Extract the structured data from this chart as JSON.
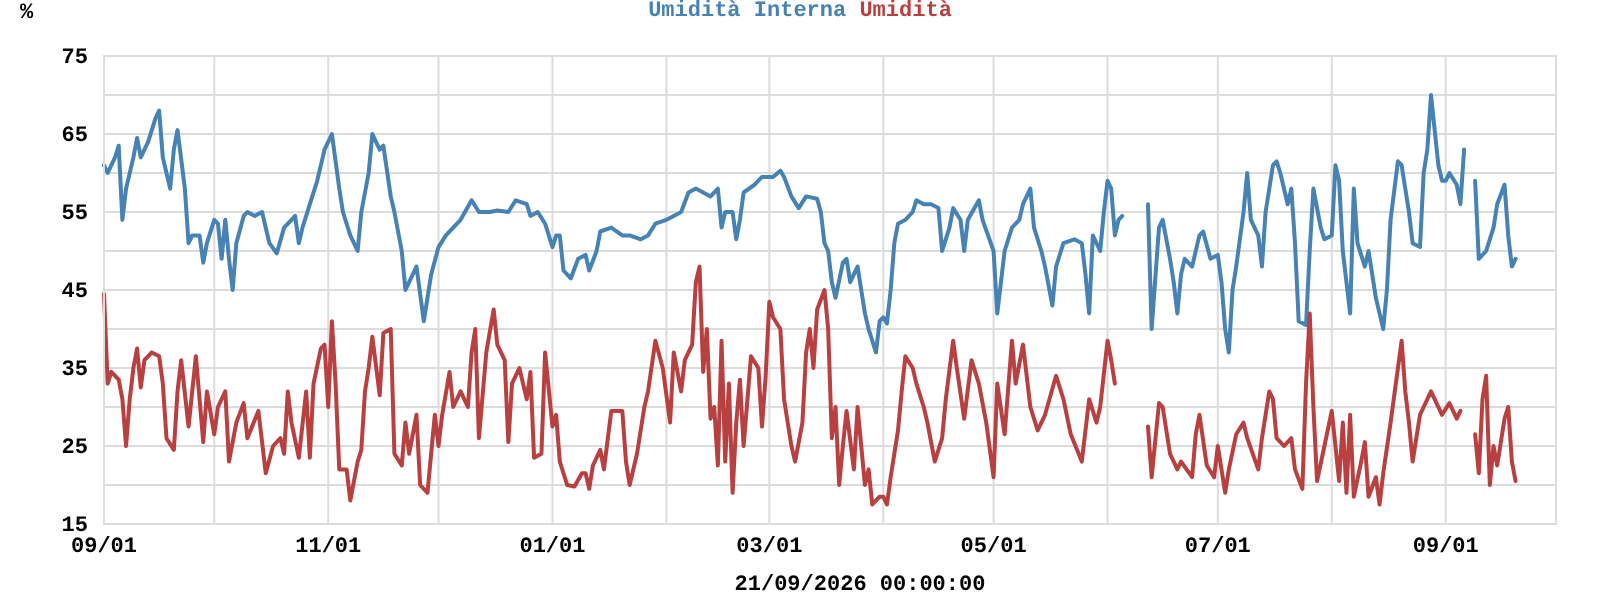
{
  "chart_data": {
    "type": "line",
    "xlabel": "21/09/2026 00:00:00",
    "ylabel": "%",
    "legend": "top",
    "grid": true,
    "line_style": "solid",
    "marker": "none",
    "xlim": [
      "2025-09-01",
      "2026-10-01"
    ],
    "xticks": [
      {
        "value": "2025-09-01",
        "label": "09/01"
      },
      {
        "value": "2025-10-01",
        "label": null
      },
      {
        "value": "2025-11-01",
        "label": "11/01"
      },
      {
        "value": "2025-12-01",
        "label": null
      },
      {
        "value": "2026-01-01",
        "label": "01/01"
      },
      {
        "value": "2026-02-01",
        "label": null
      },
      {
        "value": "2026-03-01",
        "label": "03/01"
      },
      {
        "value": "2026-04-01",
        "label": null
      },
      {
        "value": "2026-05-01",
        "label": "05/01"
      },
      {
        "value": "2026-06-01",
        "label": null
      },
      {
        "value": "2026-07-01",
        "label": "07/01"
      },
      {
        "value": "2026-08-01",
        "label": null
      },
      {
        "value": "2026-09-01",
        "label": "09/01"
      }
    ],
    "ylim": [
      15,
      75
    ],
    "yticks": [
      15,
      {
        "value": 20,
        "label": null
      },
      25,
      {
        "value": 30,
        "label": null
      },
      35,
      {
        "value": 40,
        "label": null
      },
      45,
      {
        "value": 50,
        "label": null
      },
      55,
      {
        "value": 60,
        "label": null
      },
      65,
      {
        "value": 70,
        "label": null
      },
      75
    ],
    "series": [
      {
        "name": "Umidità Interna",
        "color": "#4682b4",
        "x": [
          "2025-09-01",
          "2025-09-02",
          "2025-09-04",
          "2025-09-05",
          "2025-09-06",
          "2025-09-07",
          "2025-09-09",
          "2025-09-10",
          "2025-09-11",
          "2025-09-13",
          "2025-09-15",
          "2025-09-16",
          "2025-09-17",
          "2025-09-19",
          "2025-09-20",
          "2025-09-21",
          "2025-09-23",
          "2025-09-24",
          "2025-09-25",
          "2025-09-27",
          "2025-09-28",
          "2025-09-29",
          "2025-10-01",
          "2025-10-02",
          "2025-10-03",
          "2025-10-04",
          "2025-10-05",
          "2025-10-06",
          "2025-10-07",
          "2025-10-09",
          "2025-10-10",
          "2025-10-12",
          "2025-10-14",
          "2025-10-16",
          "2025-10-18",
          "2025-10-20",
          "2025-10-22",
          "2025-10-23",
          "2025-10-24",
          "2025-10-25",
          "2025-10-27",
          "2025-10-29",
          "2025-10-31",
          "2025-11-02",
          "2025-11-04",
          "2025-11-05",
          "2025-11-07",
          "2025-11-09",
          "2025-11-10",
          "2025-11-12",
          "2025-11-13",
          "2025-11-15",
          "2025-11-16",
          "2025-11-18",
          "2025-11-19",
          "2025-11-21",
          "2025-11-22",
          "2025-11-24",
          "2025-11-25",
          "2025-11-27",
          "2025-11-29",
          "2025-12-01",
          "2025-12-03",
          "2025-12-05",
          "2025-12-07",
          "2025-12-10",
          "2025-12-12",
          "2025-12-15",
          "2025-12-17",
          "2025-12-20",
          "2025-12-22",
          "2025-12-25",
          "2025-12-26",
          "2025-12-28",
          "2025-12-30",
          "2026-01-01",
          "2026-01-02",
          "2026-01-03",
          "2026-01-04",
          "2026-01-06",
          "2026-01-08",
          "2026-01-10",
          "2026-01-11",
          "2026-01-13",
          "2026-01-14",
          "2026-01-17",
          "2026-01-20",
          "2026-01-22",
          "2026-01-25",
          "2026-01-27",
          "2026-01-29",
          "2026-02-01",
          "2026-02-03",
          "2026-02-05",
          "2026-02-07",
          "2026-02-09",
          "2026-02-11",
          "2026-02-13",
          "2026-02-15",
          "2026-02-16",
          "2026-02-17",
          "2026-02-19",
          "2026-02-20",
          "2026-02-21",
          "2026-02-22",
          "2026-02-25",
          "2026-02-27",
          "2026-03-02",
          "2026-03-04",
          "2026-03-05",
          "2026-03-07",
          "2026-03-09",
          "2026-03-11",
          "2026-03-14",
          "2026-03-15",
          "2026-03-16",
          "2026-03-17",
          "2026-03-18",
          "2026-03-19",
          "2026-03-21",
          "2026-03-22",
          "2026-03-23",
          "2026-03-25",
          "2026-03-26",
          "2026-03-27",
          "2026-03-28",
          "2026-03-30",
          "2026-03-31",
          "2026-04-01",
          "2026-04-02",
          "2026-04-03",
          "2026-04-04",
          "2026-04-05",
          "2026-04-07",
          "2026-04-09",
          "2026-04-10",
          "2026-04-12",
          "2026-04-14",
          "2026-04-16",
          "2026-04-17",
          "2026-04-19",
          "2026-04-20",
          "2026-04-22",
          "2026-04-23",
          "2026-04-24",
          "2026-04-27",
          "2026-04-28",
          "2026-05-01",
          "2026-05-02",
          "2026-05-03",
          "2026-05-04",
          "2026-05-06",
          "2026-05-08",
          "2026-05-09",
          "2026-05-11",
          "2026-05-12",
          "2026-05-14",
          "2026-05-15",
          "2026-05-17",
          "2026-05-18",
          "2026-05-20",
          "2026-05-23",
          "2026-05-25",
          "2026-05-26",
          "2026-05-27",
          "2026-05-28",
          "2026-05-30",
          "2026-05-31",
          "2026-06-01",
          "2026-06-02",
          "2026-06-03",
          "2026-06-04",
          "2026-06-05",
          "2026-06-08",
          "2026-06-12",
          "2026-06-13",
          "2026-06-15",
          "2026-06-16",
          "2026-06-18",
          "2026-06-19",
          "2026-06-20",
          "2026-06-21",
          "2026-06-22",
          "2026-06-24",
          "2026-06-26",
          "2026-06-27",
          "2026-06-29",
          "2026-07-01",
          "2026-07-02",
          "2026-07-03",
          "2026-07-04",
          "2026-07-05",
          "2026-07-06",
          "2026-07-08",
          "2026-07-09",
          "2026-07-10",
          "2026-07-12",
          "2026-07-13",
          "2026-07-14",
          "2026-07-16",
          "2026-07-17",
          "2026-07-18",
          "2026-07-20",
          "2026-07-21",
          "2026-07-22",
          "2026-07-23",
          "2026-07-25",
          "2026-07-26",
          "2026-07-27",
          "2026-07-29",
          "2026-07-30",
          "2026-08-01",
          "2026-08-02",
          "2026-08-03",
          "2026-08-04",
          "2026-08-06",
          "2026-08-07",
          "2026-08-08",
          "2026-08-10",
          "2026-08-11",
          "2026-08-13",
          "2026-08-14",
          "2026-08-15",
          "2026-08-16",
          "2026-08-17",
          "2026-08-19",
          "2026-08-20",
          "2026-08-22",
          "2026-08-23",
          "2026-08-25",
          "2026-08-26",
          "2026-08-27",
          "2026-08-28",
          "2026-08-30",
          "2026-08-31",
          "2026-09-01",
          "2026-09-02",
          "2026-09-04",
          "2026-09-05",
          "2026-09-06",
          "2026-09-08",
          "2026-09-09",
          "2026-09-10",
          "2026-09-12",
          "2026-09-14",
          "2026-09-15",
          "2026-09-17",
          "2026-09-18",
          "2026-09-19",
          "2026-09-20"
        ],
        "values": [
          61,
          60,
          62,
          63.5,
          54,
          58,
          62,
          64.5,
          62,
          64,
          67,
          68,
          62,
          58,
          63,
          65.5,
          58,
          51,
          52,
          52,
          48.5,
          51,
          54,
          53.5,
          49,
          54,
          49,
          45,
          51,
          54.5,
          55,
          54.5,
          55,
          51,
          49.7,
          53,
          54,
          54.5,
          51,
          53,
          56,
          59,
          63,
          65,
          58,
          55,
          52,
          50,
          55,
          60,
          65,
          63,
          63.5,
          57,
          55,
          50,
          45,
          47,
          48,
          41,
          47,
          50.5,
          52,
          53,
          54,
          56.5,
          55,
          55,
          55.2,
          55,
          56.5,
          56,
          54.5,
          55,
          53.5,
          50.5,
          52,
          52,
          47.5,
          46.5,
          49,
          49.5,
          47.5,
          50,
          52.5,
          53,
          52,
          52,
          51.5,
          52,
          53.5,
          54,
          54.5,
          55,
          57.5,
          58,
          57.5,
          57,
          58,
          53,
          55,
          55,
          51.5,
          54,
          57.5,
          58.5,
          59.5,
          59.5,
          60.3,
          59.5,
          57,
          55.5,
          57,
          56.7,
          55,
          51,
          50,
          46,
          44,
          48.5,
          49,
          46,
          48,
          45,
          42,
          40,
          37,
          41,
          41.5,
          40.7,
          45,
          51,
          53.5,
          54,
          55,
          56.5,
          56,
          56,
          55.5,
          50,
          53,
          55.5,
          54,
          50,
          54,
          56.5,
          54,
          50,
          42,
          46,
          50,
          53,
          54,
          56,
          58,
          53,
          50,
          48,
          43,
          48,
          51,
          51.5,
          51,
          47,
          42,
          52,
          50,
          55,
          59,
          58,
          52,
          54,
          54.5,
          null,
          56,
          40,
          53,
          54,
          49,
          46,
          42,
          47,
          49,
          48,
          52,
          52.5,
          49,
          49.5,
          46,
          40,
          37,
          45,
          48,
          55,
          60,
          54,
          52,
          48,
          55,
          61,
          61.5,
          60,
          56,
          58,
          51,
          41,
          40.5,
          50,
          58,
          53,
          51.5,
          52,
          61,
          59,
          50,
          42,
          58,
          51,
          48,
          50,
          44,
          42,
          40,
          45,
          54,
          61.5,
          61,
          55,
          51,
          50.5,
          60,
          63,
          70,
          61,
          59,
          59,
          60,
          58.5,
          56,
          63,
          null,
          59,
          49,
          50,
          53,
          56,
          58.5,
          52,
          48,
          49
        ]
      },
      {
        "name": "Umidità",
        "color": "#b94040",
        "x": [
          "2025-09-01",
          "2025-09-02",
          "2025-09-03",
          "2025-09-05",
          "2025-09-06",
          "2025-09-07",
          "2025-09-08",
          "2025-09-09",
          "2025-09-10",
          "2025-09-11",
          "2025-09-12",
          "2025-09-14",
          "2025-09-16",
          "2025-09-17",
          "2025-09-18",
          "2025-09-20",
          "2025-09-21",
          "2025-09-22",
          "2025-09-24",
          "2025-09-26",
          "2025-09-28",
          "2025-09-29",
          "2025-10-01",
          "2025-10-02",
          "2025-10-04",
          "2025-10-05",
          "2025-10-07",
          "2025-10-09",
          "2025-10-10",
          "2025-10-13",
          "2025-10-15",
          "2025-10-17",
          "2025-10-19",
          "2025-10-20",
          "2025-10-21",
          "2025-10-22",
          "2025-10-24",
          "2025-10-26",
          "2025-10-27",
          "2025-10-28",
          "2025-10-30",
          "2025-10-31",
          "2025-11-01",
          "2025-11-02",
          "2025-11-03",
          "2025-11-04",
          "2025-11-06",
          "2025-11-07",
          "2025-11-09",
          "2025-11-10",
          "2025-11-11",
          "2025-11-12",
          "2025-11-13",
          "2025-11-15",
          "2025-11-16",
          "2025-11-18",
          "2025-11-19",
          "2025-11-21",
          "2025-11-22",
          "2025-11-23",
          "2025-11-25",
          "2025-11-26",
          "2025-11-28",
          "2025-11-30",
          "2025-12-01",
          "2025-12-02",
          "2025-12-04",
          "2025-12-05",
          "2025-12-07",
          "2025-12-09",
          "2025-12-10",
          "2025-12-11",
          "2025-12-12",
          "2025-12-14",
          "2025-12-16",
          "2025-12-17",
          "2025-12-19",
          "2025-12-20",
          "2025-12-21",
          "2025-12-23",
          "2025-12-25",
          "2025-12-26",
          "2025-12-27",
          "2025-12-29",
          "2025-12-30",
          "2026-01-01",
          "2026-01-02",
          "2026-01-03",
          "2026-01-05",
          "2026-01-07",
          "2026-01-09",
          "2026-01-10",
          "2026-01-11",
          "2026-01-12",
          "2026-01-14",
          "2026-01-15",
          "2026-01-17",
          "2026-01-18",
          "2026-01-20",
          "2026-01-21",
          "2026-01-22",
          "2026-01-24",
          "2026-01-26",
          "2026-01-27",
          "2026-01-29",
          "2026-01-31",
          "2026-02-02",
          "2026-02-03",
          "2026-02-05",
          "2026-02-06",
          "2026-02-08",
          "2026-02-09",
          "2026-02-10",
          "2026-02-11",
          "2026-02-12",
          "2026-02-13",
          "2026-02-14",
          "2026-02-15",
          "2026-02-16",
          "2026-02-17",
          "2026-02-18",
          "2026-02-19",
          "2026-02-20",
          "2026-02-21",
          "2026-02-22",
          "2026-02-24",
          "2026-02-26",
          "2026-02-27",
          "2026-02-28",
          "2026-03-01",
          "2026-03-02",
          "2026-03-04",
          "2026-03-05",
          "2026-03-07",
          "2026-03-08",
          "2026-03-10",
          "2026-03-11",
          "2026-03-12",
          "2026-03-13",
          "2026-03-14",
          "2026-03-16",
          "2026-03-17",
          "2026-03-18",
          "2026-03-19",
          "2026-03-20",
          "2026-03-21",
          "2026-03-22",
          "2026-03-24",
          "2026-03-25",
          "2026-03-27",
          "2026-03-28",
          "2026-03-29",
          "2026-03-31",
          "2026-04-01",
          "2026-04-02",
          "2026-04-03",
          "2026-04-05",
          "2026-04-06",
          "2026-04-07",
          "2026-04-09",
          "2026-04-10",
          "2026-04-12",
          "2026-04-13",
          "2026-04-15",
          "2026-04-17",
          "2026-04-18",
          "2026-04-20",
          "2026-04-21",
          "2026-04-23",
          "2026-04-25",
          "2026-04-27",
          "2026-04-29",
          "2026-05-01",
          "2026-05-02",
          "2026-05-04",
          "2026-05-06",
          "2026-05-07",
          "2026-05-09",
          "2026-05-11",
          "2026-05-13",
          "2026-05-15",
          "2026-05-18",
          "2026-05-20",
          "2026-05-22",
          "2026-05-25",
          "2026-05-27",
          "2026-05-29",
          "2026-05-30",
          "2026-06-01",
          "2026-06-02",
          "2026-06-03",
          "2026-06-06",
          "2026-06-12",
          "2026-06-13",
          "2026-06-15",
          "2026-06-16",
          "2026-06-18",
          "2026-06-20",
          "2026-06-21",
          "2026-06-24",
          "2026-06-25",
          "2026-06-26",
          "2026-06-28",
          "2026-06-30",
          "2026-07-01",
          "2026-07-03",
          "2026-07-04",
          "2026-07-06",
          "2026-07-08",
          "2026-07-09",
          "2026-07-12",
          "2026-07-13",
          "2026-07-15",
          "2026-07-16",
          "2026-07-17",
          "2026-07-19",
          "2026-07-21",
          "2026-07-22",
          "2026-07-24",
          "2026-07-25",
          "2026-07-26",
          "2026-07-27",
          "2026-07-28",
          "2026-07-30",
          "2026-08-01",
          "2026-08-03",
          "2026-08-04",
          "2026-08-05",
          "2026-08-06",
          "2026-08-07",
          "2026-08-09",
          "2026-08-10",
          "2026-08-11",
          "2026-08-13",
          "2026-08-14",
          "2026-08-15",
          "2026-08-17",
          "2026-08-19",
          "2026-08-20",
          "2026-08-21",
          "2026-08-22",
          "2026-08-23",
          "2026-08-25",
          "2026-08-26",
          "2026-08-28",
          "2026-08-31",
          "2026-09-02",
          "2026-09-04",
          "2026-09-05",
          "2026-09-07",
          "2026-09-09",
          "2026-09-10",
          "2026-09-11",
          "2026-09-12",
          "2026-09-13",
          "2026-09-14",
          "2026-09-15",
          "2026-09-17",
          "2026-09-18",
          "2026-09-19",
          "2026-09-20"
        ],
        "values": [
          44.5,
          33,
          34.5,
          33.5,
          31,
          25,
          31,
          35,
          37.5,
          32.5,
          36,
          37,
          36.5,
          33,
          26,
          24.5,
          32,
          36,
          27.5,
          36.5,
          25.5,
          32,
          26.5,
          30,
          32,
          23,
          28,
          30.5,
          26,
          29.5,
          21.5,
          25,
          26,
          24,
          32,
          28,
          23.5,
          32,
          23.5,
          33,
          37.5,
          38,
          30,
          41,
          33,
          22,
          22,
          18,
          23,
          24.5,
          32,
          35,
          39,
          31.5,
          39.5,
          40,
          24,
          22.5,
          28,
          24,
          29,
          20,
          19,
          29,
          25,
          29,
          34.5,
          30,
          32,
          30,
          37,
          40,
          26,
          37,
          42.5,
          38,
          36,
          25.5,
          33,
          35,
          31,
          34.5,
          23.5,
          24,
          37,
          27.5,
          29,
          23,
          20,
          19.8,
          21.5,
          21.5,
          19.5,
          22.5,
          24.5,
          22,
          29.5,
          29.5,
          29.5,
          23,
          20,
          24,
          30,
          32,
          38.5,
          35,
          28,
          37,
          32,
          36,
          38,
          46,
          48,
          34.5,
          40,
          28.5,
          30,
          22.5,
          38.5,
          23,
          33,
          19,
          28,
          33.5,
          25,
          36.5,
          35,
          27.5,
          34,
          43.5,
          41.5,
          40,
          31,
          25,
          23,
          28,
          37,
          40,
          35,
          42.5,
          45,
          40,
          26,
          30,
          20,
          25,
          29.5,
          22,
          30,
          20,
          22,
          17.5,
          18.5,
          18.5,
          17.5,
          21,
          27,
          32,
          36.5,
          35,
          33,
          30,
          28,
          23,
          26,
          31,
          38.5,
          35,
          28.5,
          36,
          33,
          28,
          21,
          33,
          26.5,
          38.5,
          33,
          38,
          30,
          27,
          29,
          34,
          31,
          26.5,
          23,
          31,
          28,
          30,
          38.5,
          36,
          33,
          null,
          27.5,
          21,
          30.5,
          30,
          24,
          22,
          23,
          21,
          26.5,
          29,
          22.5,
          21,
          25,
          19,
          22,
          26.5,
          28,
          26,
          22,
          26,
          32,
          31,
          26,
          25,
          26,
          22,
          19.5,
          33,
          42,
          30,
          20.5,
          25,
          29.5,
          20.5,
          28,
          19,
          29,
          18.5,
          23,
          25.5,
          18.5,
          21,
          17.5,
          21.5,
          28,
          35,
          38.5,
          32,
          28,
          23,
          29,
          30,
          32,
          29,
          30.5,
          28.5,
          29.5,
          null,
          26.5,
          21.5,
          31,
          34,
          20,
          25,
          22.5,
          28.5,
          30,
          23,
          20.5
        ]
      }
    ]
  }
}
